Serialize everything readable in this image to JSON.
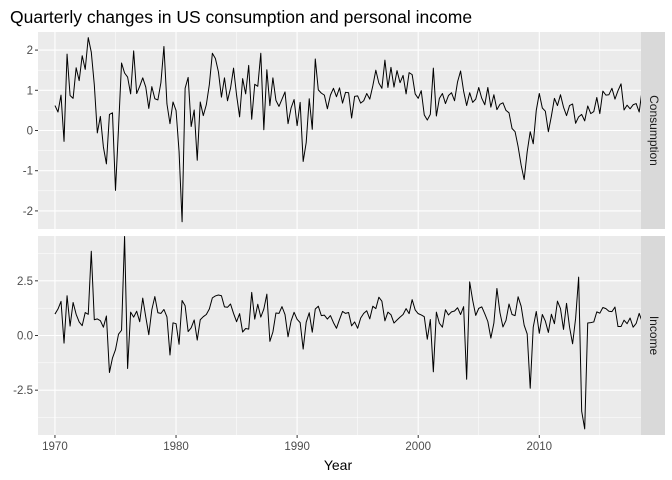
{
  "chart_data": {
    "type": "line",
    "title": "Quarterly changes in US consumption and personal income",
    "xlabel": "Year",
    "x_ticks": [
      1970,
      1980,
      1990,
      2000,
      2010
    ],
    "xlim": [
      1968.6,
      2018.4
    ],
    "grid": true,
    "x_start": 1970.0,
    "x_step": 0.25,
    "panels": [
      {
        "strip": "Consumption",
        "ylim": [
          -2.45,
          2.45
        ],
        "y_ticks": [
          -2,
          -1,
          0,
          1,
          2
        ],
        "y_tick_labels": [
          "-2",
          "-1",
          "0",
          "1",
          "2"
        ],
        "values": [
          0.62,
          0.46,
          0.88,
          -0.27,
          1.9,
          0.87,
          0.8,
          1.56,
          1.24,
          1.86,
          1.52,
          2.31,
          1.95,
          1.14,
          -0.06,
          0.35,
          -0.41,
          -0.83,
          0.4,
          0.44,
          -1.49,
          0.06,
          1.68,
          1.43,
          1.33,
          0.91,
          1.98,
          0.92,
          1.1,
          1.31,
          1.08,
          0.55,
          1.09,
          0.79,
          0.76,
          1.19,
          2.09,
          0.66,
          0.17,
          0.71,
          0.5,
          -0.52,
          -2.27,
          1.05,
          1.32,
          0.1,
          0.51,
          -0.74,
          0.71,
          0.37,
          0.64,
          1.14,
          1.92,
          1.79,
          1.46,
          0.83,
          1.31,
          0.74,
          1.05,
          1.55,
          0.88,
          0.34,
          1.29,
          0.91,
          1.62,
          0.28,
          1.15,
          1.1,
          1.92,
          0.02,
          1.51,
          0.62,
          1.31,
          0.75,
          0.6,
          0.78,
          0.96,
          0.17,
          0.56,
          0.77,
          0.12,
          0.7,
          -0.77,
          -0.3,
          0.79,
          0.03,
          1.78,
          1.01,
          0.93,
          0.88,
          0.54,
          0.88,
          1.05,
          0.84,
          1.06,
          0.68,
          0.95,
          0.94,
          0.31,
          0.85,
          0.86,
          0.68,
          0.74,
          0.92,
          0.78,
          1.11,
          1.5,
          1.18,
          1.05,
          1.75,
          1.07,
          1.57,
          1.08,
          1.49,
          1.19,
          1.37,
          0.91,
          1.44,
          1.39,
          0.91,
          0.8,
          0.99,
          0.39,
          0.26,
          0.4,
          1.55,
          0.36,
          0.8,
          0.92,
          0.67,
          0.87,
          0.94,
          0.74,
          1.21,
          1.48,
          0.98,
          0.62,
          0.94,
          0.7,
          0.78,
          1.07,
          0.8,
          0.64,
          1.07,
          0.58,
          0.89,
          0.52,
          0.65,
          0.69,
          0.5,
          0.44,
          0.05,
          -0.03,
          -0.4,
          -0.86,
          -1.22,
          -0.53,
          -0.03,
          -0.33,
          0.5,
          0.92,
          0.56,
          0.48,
          -0.03,
          0.36,
          0.8,
          0.62,
          0.89,
          0.58,
          0.37,
          0.62,
          0.66,
          0.18,
          0.34,
          0.4,
          0.24,
          0.61,
          0.42,
          0.47,
          0.82,
          0.42,
          0.98,
          0.88,
          0.89,
          1.05,
          0.78,
          0.99,
          1.16,
          0.51,
          0.63,
          0.54,
          0.64,
          0.67,
          0.46,
          1.02,
          0.66,
          0.77,
          0.63
        ]
      },
      {
        "strip": "Income",
        "ylim": [
          -4.55,
          4.55
        ],
        "y_ticks": [
          -2.5,
          0.0,
          2.5
        ],
        "y_tick_labels": [
          "-2.5",
          "0.0",
          "2.5"
        ],
        "values": [
          0.98,
          1.21,
          1.56,
          -0.35,
          1.82,
          0.43,
          1.51,
          0.97,
          0.62,
          0.45,
          1.05,
          0.97,
          3.85,
          0.72,
          0.76,
          0.68,
          0.38,
          0.89,
          -1.69,
          -1.03,
          -0.65,
          0.06,
          0.24,
          4.53,
          -1.51,
          1.07,
          0.84,
          1.11,
          0.63,
          1.71,
          0.85,
          0.04,
          1.18,
          1.78,
          1.04,
          1.01,
          1.19,
          0.85,
          -0.89,
          0.58,
          0.54,
          -0.4,
          1.6,
          1.36,
          0.18,
          0.35,
          0.71,
          -0.21,
          0.72,
          0.86,
          0.96,
          1.21,
          1.72,
          1.81,
          1.85,
          1.82,
          1.31,
          1.29,
          1.44,
          1.01,
          0.63,
          1.0,
          0.16,
          0.32,
          0.29,
          1.97,
          0.75,
          1.43,
          0.84,
          1.21,
          1.89,
          -0.27,
          0.16,
          1.03,
          1.01,
          1.32,
          0.96,
          -0.06,
          0.66,
          1.06,
          0.74,
          0.59,
          -0.62,
          0.61,
          1.04,
          0.15,
          1.21,
          1.34,
          0.91,
          0.93,
          0.75,
          0.91,
          0.59,
          0.33,
          0.73,
          1.1,
          1.01,
          1.05,
          0.44,
          0.62,
          0.33,
          0.8,
          1.01,
          1.13,
          0.76,
          1.34,
          1.23,
          1.75,
          1.57,
          0.67,
          1.07,
          0.95,
          0.57,
          0.71,
          0.84,
          0.96,
          1.23,
          1.0,
          1.64,
          1.17,
          1.0,
          0.94,
          0.86,
          -0.17,
          0.73,
          -1.66,
          1.07,
          0.56,
          0.38,
          1.18,
          0.94,
          1.08,
          1.12,
          1.27,
          0.96,
          1.32,
          -2.0,
          2.45,
          1.61,
          0.92,
          1.24,
          1.31,
          0.99,
          0.64,
          -0.12,
          0.57,
          2.15,
          1.05,
          0.39,
          0.69,
          1.44,
          0.96,
          0.91,
          1.77,
          1.34,
          0.47,
          0.07,
          -2.41,
          0.38,
          1.1,
          0.1,
          0.96,
          0.66,
          0.14,
          0.97,
          0.54,
          1.57,
          1.23,
          0.28,
          1.47,
          0.38,
          -0.38,
          0.78,
          2.67,
          -3.46,
          -4.27,
          0.57,
          0.59,
          0.62,
          1.08,
          1.02,
          1.28,
          1.23,
          1.11,
          1.09,
          1.3,
          0.41,
          0.41,
          0.7,
          0.54,
          0.8,
          0.38,
          0.55,
          1.01,
          0.63,
          0.75,
          0.77,
          0.6,
          0.64,
          0.81,
          0.74
        ]
      }
    ]
  },
  "colors": {
    "panel_bg": "#EBEBEB",
    "grid_major": "#FFFFFF",
    "strip_bg": "#D9D9D9",
    "line": "#000000",
    "tick": "#333333"
  }
}
